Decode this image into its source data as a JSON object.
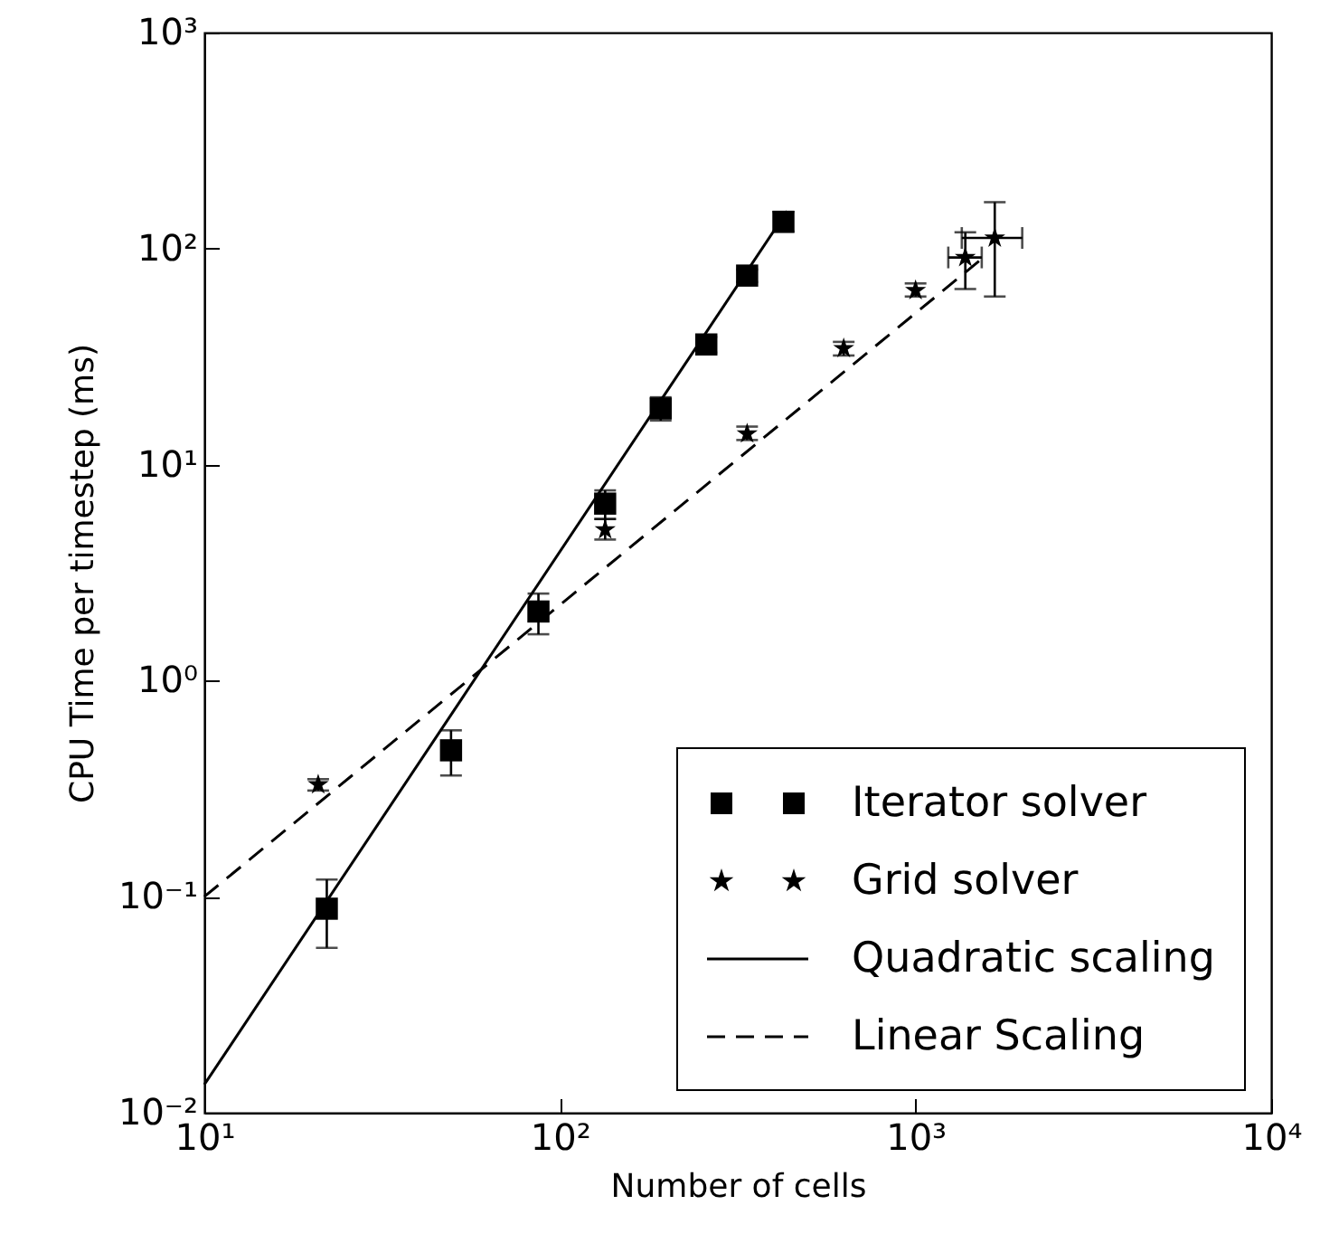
{
  "chart_data": {
    "type": "scatter",
    "xlabel": "Number of cells",
    "ylabel": "CPU Time per timestep (ms)",
    "log": "xy",
    "grid": false,
    "legend": "bottom right",
    "xlim": [
      10,
      10000
    ],
    "xticks": [
      {
        "value": 10,
        "label": "10¹"
      },
      {
        "value": 100,
        "label": "10²"
      },
      {
        "value": 1000,
        "label": "10³"
      },
      {
        "value": 10000,
        "label": "10⁴"
      }
    ],
    "ylim": [
      0.01,
      1000
    ],
    "yticks": [
      {
        "value": 0.01,
        "label": "10⁻²"
      },
      {
        "value": 0.1,
        "label": "10⁻¹"
      },
      {
        "value": 1,
        "label": "10⁰"
      },
      {
        "value": 10,
        "label": "10¹"
      },
      {
        "value": 100,
        "label": "10²"
      },
      {
        "value": 1000,
        "label": "10³"
      }
    ],
    "series": [
      {
        "name": "Iterator solver",
        "marker": "square",
        "color": "#000000",
        "x": [
          22.1,
          49.4,
          87,
          134,
          192,
          258,
          336,
          425
        ],
        "values": [
          0.088,
          0.476,
          2.09,
          6.6,
          18.2,
          36,
          75,
          133
        ],
        "errors": [
          [
            0.058,
            0.12
          ],
          [
            0.364,
            0.589
          ],
          [
            1.64,
            2.53
          ],
          [
            5.6,
            7.6
          ],
          [
            16,
            20.5
          ],
          [
            33,
            39
          ],
          [
            70,
            80
          ],
          [
            120,
            148
          ]
        ]
      },
      {
        "name": "Grid solver",
        "marker": "star",
        "color": "#000000",
        "x": [
          20.9,
          134,
          336,
          628,
          1000,
          1380,
          1670
        ],
        "values": [
          0.33,
          5.0,
          13.9,
          34.5,
          64,
          91,
          112
        ],
        "errors": [
          [
            0.31,
            0.35
          ],
          [
            4.5,
            5.6
          ],
          [
            13,
            15
          ],
          [
            32,
            37
          ],
          [
            60,
            69
          ],
          [
            65,
            119
          ],
          [
            60,
            164
          ]
        ],
        "xerrors": [
          null,
          null,
          null,
          null,
          null,
          [
            1236,
            1535
          ],
          [
            1349,
            1995
          ]
        ]
      },
      {
        "name": "Quadratic scaling",
        "type": "line",
        "line_style": "solid",
        "color": "#000000",
        "x": [
          10,
          435
        ],
        "values": [
          0.0135,
          149
        ]
      },
      {
        "name": "Linear Scaling",
        "type": "line",
        "line_style": "dashed",
        "color": "#000000",
        "x": [
          10,
          1590
        ],
        "values": [
          0.1,
          94
        ]
      }
    ]
  }
}
